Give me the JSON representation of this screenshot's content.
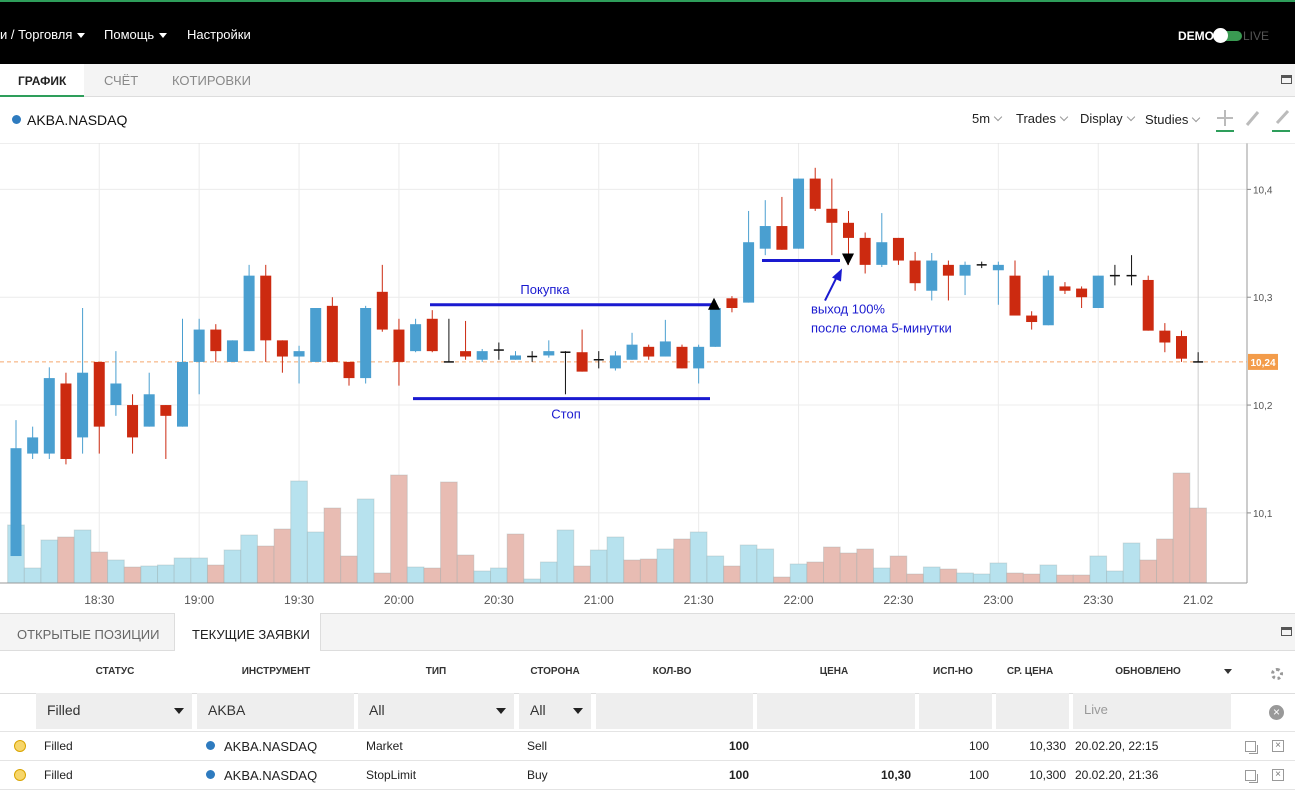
{
  "menu": [
    "и / Торговля",
    "Помощь",
    "Настройки"
  ],
  "mode": {
    "demo": "DEMO",
    "live": "LIVE"
  },
  "tabs": [
    "ГРАФИК",
    "СЧЁТ",
    "КОТИРОВКИ"
  ],
  "symbol": "AKBA.NASDAQ",
  "toolbar": [
    "5m",
    "Trades",
    "Display",
    "Studies"
  ],
  "chart_data": {
    "type": "candlestick",
    "categories": [
      null,
      null,
      null,
      null,
      null,
      "18:30",
      null,
      null,
      null,
      null,
      null,
      "19:00",
      null,
      null,
      null,
      null,
      null,
      "19:30",
      null,
      null,
      null,
      null,
      null,
      "20:00",
      null,
      null,
      null,
      null,
      null,
      "20:30",
      null,
      null,
      null,
      null,
      null,
      "21:00",
      null,
      null,
      null,
      null,
      null,
      "21:30",
      null,
      null,
      null,
      null,
      null,
      "22:00",
      null,
      null,
      null,
      null,
      null,
      "22:30",
      null,
      null,
      null,
      null,
      null,
      "23:00",
      null,
      null,
      null,
      null,
      null,
      "23:30",
      null,
      null,
      null,
      null,
      null,
      "21.02"
    ],
    "open": [
      10.06,
      10.155,
      10.155,
      10.22,
      10.17,
      10.24,
      10.2,
      10.2,
      10.18,
      10.2,
      10.18,
      10.24,
      10.27,
      10.24,
      10.25,
      10.32,
      10.26,
      10.245,
      10.24,
      10.292,
      10.24,
      10.225,
      10.305,
      10.27,
      10.25,
      10.28,
      10.24,
      10.25,
      10.242,
      10.251,
      10.242,
      10.245,
      10.246,
      10.249,
      10.249,
      10.242,
      10.234,
      10.242,
      10.254,
      10.245,
      10.254,
      10.234,
      10.254,
      10.299,
      10.295,
      10.345,
      10.366,
      10.345,
      10.41,
      10.382,
      10.369,
      10.355,
      10.33,
      10.355,
      10.334,
      10.306,
      10.33,
      10.32,
      10.33,
      10.325,
      10.32,
      10.283,
      10.274,
      10.31,
      10.308,
      10.29,
      10.32,
      10.32,
      10.316,
      10.269,
      10.264,
      10.24
    ],
    "high": [
      10.186,
      10.18,
      10.235,
      10.23,
      10.29,
      10.24,
      10.25,
      10.21,
      10.23,
      10.2,
      10.28,
      10.28,
      10.275,
      10.26,
      10.33,
      10.33,
      10.26,
      10.255,
      10.29,
      10.3,
      10.24,
      10.292,
      10.33,
      10.28,
      10.28,
      10.288,
      10.28,
      10.278,
      10.252,
      10.258,
      10.25,
      10.25,
      10.26,
      10.25,
      10.27,
      10.25,
      10.25,
      10.267,
      10.256,
      10.279,
      10.256,
      10.256,
      10.297,
      10.301,
      10.38,
      10.39,
      10.393,
      10.41,
      10.42,
      10.41,
      10.38,
      10.36,
      10.378,
      10.355,
      10.342,
      10.341,
      10.334,
      10.333,
      10.333,
      10.333,
      10.334,
      10.287,
      10.325,
      10.314,
      10.31,
      10.32,
      10.33,
      10.339,
      10.32,
      10.276,
      10.269,
      10.249
    ],
    "low": [
      10.06,
      10.15,
      10.15,
      10.145,
      10.155,
      10.155,
      10.19,
      10.155,
      10.18,
      10.15,
      10.18,
      10.21,
      10.24,
      10.24,
      10.25,
      10.24,
      10.23,
      10.22,
      10.24,
      10.24,
      10.218,
      10.22,
      10.268,
      10.218,
      10.249,
      10.249,
      10.24,
      10.242,
      10.24,
      10.242,
      10.242,
      10.24,
      10.244,
      10.21,
      10.231,
      10.234,
      10.232,
      10.242,
      10.242,
      10.245,
      10.234,
      10.22,
      10.254,
      10.286,
      10.295,
      10.339,
      10.344,
      10.345,
      10.38,
      10.339,
      10.33,
      10.322,
      10.328,
      10.33,
      10.306,
      10.297,
      10.297,
      10.302,
      10.327,
      10.293,
      10.283,
      10.27,
      10.274,
      10.303,
      10.29,
      10.29,
      10.311,
      10.311,
      10.269,
      10.249,
      10.24,
      10.24
    ],
    "close": [
      10.16,
      10.17,
      10.225,
      10.15,
      10.23,
      10.18,
      10.22,
      10.17,
      10.21,
      10.19,
      10.24,
      10.27,
      10.25,
      10.26,
      10.32,
      10.26,
      10.245,
      10.25,
      10.29,
      10.24,
      10.225,
      10.29,
      10.27,
      10.24,
      10.275,
      10.25,
      10.24,
      10.245,
      10.25,
      10.251,
      10.246,
      10.245,
      10.25,
      10.249,
      10.231,
      10.242,
      10.246,
      10.256,
      10.245,
      10.259,
      10.234,
      10.254,
      10.29,
      10.29,
      10.351,
      10.366,
      10.344,
      10.41,
      10.382,
      10.369,
      10.355,
      10.33,
      10.351,
      10.334,
      10.313,
      10.334,
      10.32,
      10.33,
      10.33,
      10.33,
      10.283,
      10.277,
      10.32,
      10.306,
      10.3,
      10.32,
      10.32,
      10.32,
      10.269,
      10.258,
      10.243,
      10.24
    ],
    "up_color": "#4a9fd0",
    "down_color": "#cc2a10",
    "doji_color": "#111111",
    "volume": [
      58,
      15,
      43,
      46,
      53,
      31,
      23,
      16,
      17,
      18,
      25,
      25,
      18,
      33,
      48,
      37,
      54,
      102,
      51,
      75,
      27,
      84,
      10,
      108,
      16,
      15,
      101,
      28,
      12,
      15,
      49,
      4,
      21,
      53,
      17,
      33,
      46,
      23,
      24,
      34,
      44,
      51,
      27,
      17,
      38,
      34,
      6,
      19,
      21,
      36,
      30,
      34,
      15,
      27,
      9,
      16,
      14,
      10,
      9,
      20,
      10,
      9,
      18,
      8,
      8,
      27,
      12,
      40,
      23,
      44,
      110,
      75
    ],
    "volume_colors": [
      "#b7e2ee",
      "#b7e2ee",
      "#b7e2ee",
      "#e8bcb3",
      "#b7e2ee",
      "#e8bcb3",
      "#b7e2ee",
      "#e8bcb3",
      "#b7e2ee",
      "#b7e2ee",
      "#b7e2ee",
      "#b7e2ee",
      "#e8bcb3",
      "#b7e2ee",
      "#b7e2ee",
      "#e8bcb3",
      "#e8bcb3",
      "#b7e2ee",
      "#b7e2ee",
      "#e8bcb3",
      "#e8bcb3",
      "#b7e2ee",
      "#e8bcb3",
      "#e8bcb3",
      "#b7e2ee",
      "#e8bcb3",
      "#e8bcb3",
      "#e8bcb3",
      "#b7e2ee",
      "#b7e2ee",
      "#e8bcb3",
      "#b7e2ee",
      "#b7e2ee",
      "#b7e2ee",
      "#e8bcb3",
      "#b7e2ee",
      "#b7e2ee",
      "#e8bcb3",
      "#e8bcb3",
      "#b7e2ee",
      "#e8bcb3",
      "#b7e2ee",
      "#b7e2ee",
      "#e8bcb3",
      "#b7e2ee",
      "#b7e2ee",
      "#e8bcb3",
      "#b7e2ee",
      "#e8bcb3",
      "#e8bcb3",
      "#e8bcb3",
      "#e8bcb3",
      "#b7e2ee",
      "#e8bcb3",
      "#e8bcb3",
      "#b7e2ee",
      "#e8bcb3",
      "#b7e2ee",
      "#b7e2ee",
      "#b7e2ee",
      "#e8bcb3",
      "#e8bcb3",
      "#b7e2ee",
      "#e8bcb3",
      "#e8bcb3",
      "#b7e2ee",
      "#b7e2ee",
      "#b7e2ee",
      "#e8bcb3",
      "#e8bcb3",
      "#e8bcb3",
      "#e8bcb3"
    ],
    "ylim": [
      10.035,
      10.443
    ],
    "yticks": [
      {
        "value": 10.1,
        "label": "10,1"
      },
      {
        "value": 10.2,
        "label": "10,2"
      },
      {
        "value": 10.3,
        "label": "10,3"
      },
      {
        "value": 10.4,
        "label": "10,4"
      }
    ],
    "grid": true,
    "current_price": {
      "value": 10.24,
      "label": "10,24"
    },
    "annotations": [
      {
        "label": "Покупка",
        "value": 10.293
      },
      {
        "label": "Стоп",
        "value": 10.206
      },
      {
        "label": [
          "выход 100%",
          "после слома 5-минутки"
        ],
        "value": 10.334
      }
    ]
  },
  "orders": {
    "tabs": [
      "ОТКРЫТЫЕ ПОЗИЦИИ",
      "ТЕКУЩИЕ ЗАЯВКИ"
    ],
    "columns": [
      "СТАТУС",
      "ИНСТРУМЕНТ",
      "ТИП",
      "СТОРОНА",
      "КОЛ-ВО",
      "ЦЕНА",
      "ИСП-НО",
      "СР. ЦЕНА",
      "ОБНОВЛЕНО"
    ],
    "filters": {
      "status": "Filled",
      "instrument": "AKBA",
      "type": "All",
      "side": "All",
      "updated": "Live"
    },
    "rows": [
      {
        "status": "Filled",
        "instrument": "AKBA.NASDAQ",
        "type": "Market",
        "side": "Sell",
        "qty": "100",
        "filled": "100",
        "avg_price": "10,330",
        "updated": "20.02.20, 22:15"
      },
      {
        "status": "Filled",
        "instrument": "AKBA.NASDAQ",
        "type": "StopLimit",
        "side": "Buy",
        "qty": "100",
        "price": "10,30",
        "filled": "100",
        "avg_price": "10,300",
        "updated": "20.02.20, 21:36"
      }
    ]
  }
}
